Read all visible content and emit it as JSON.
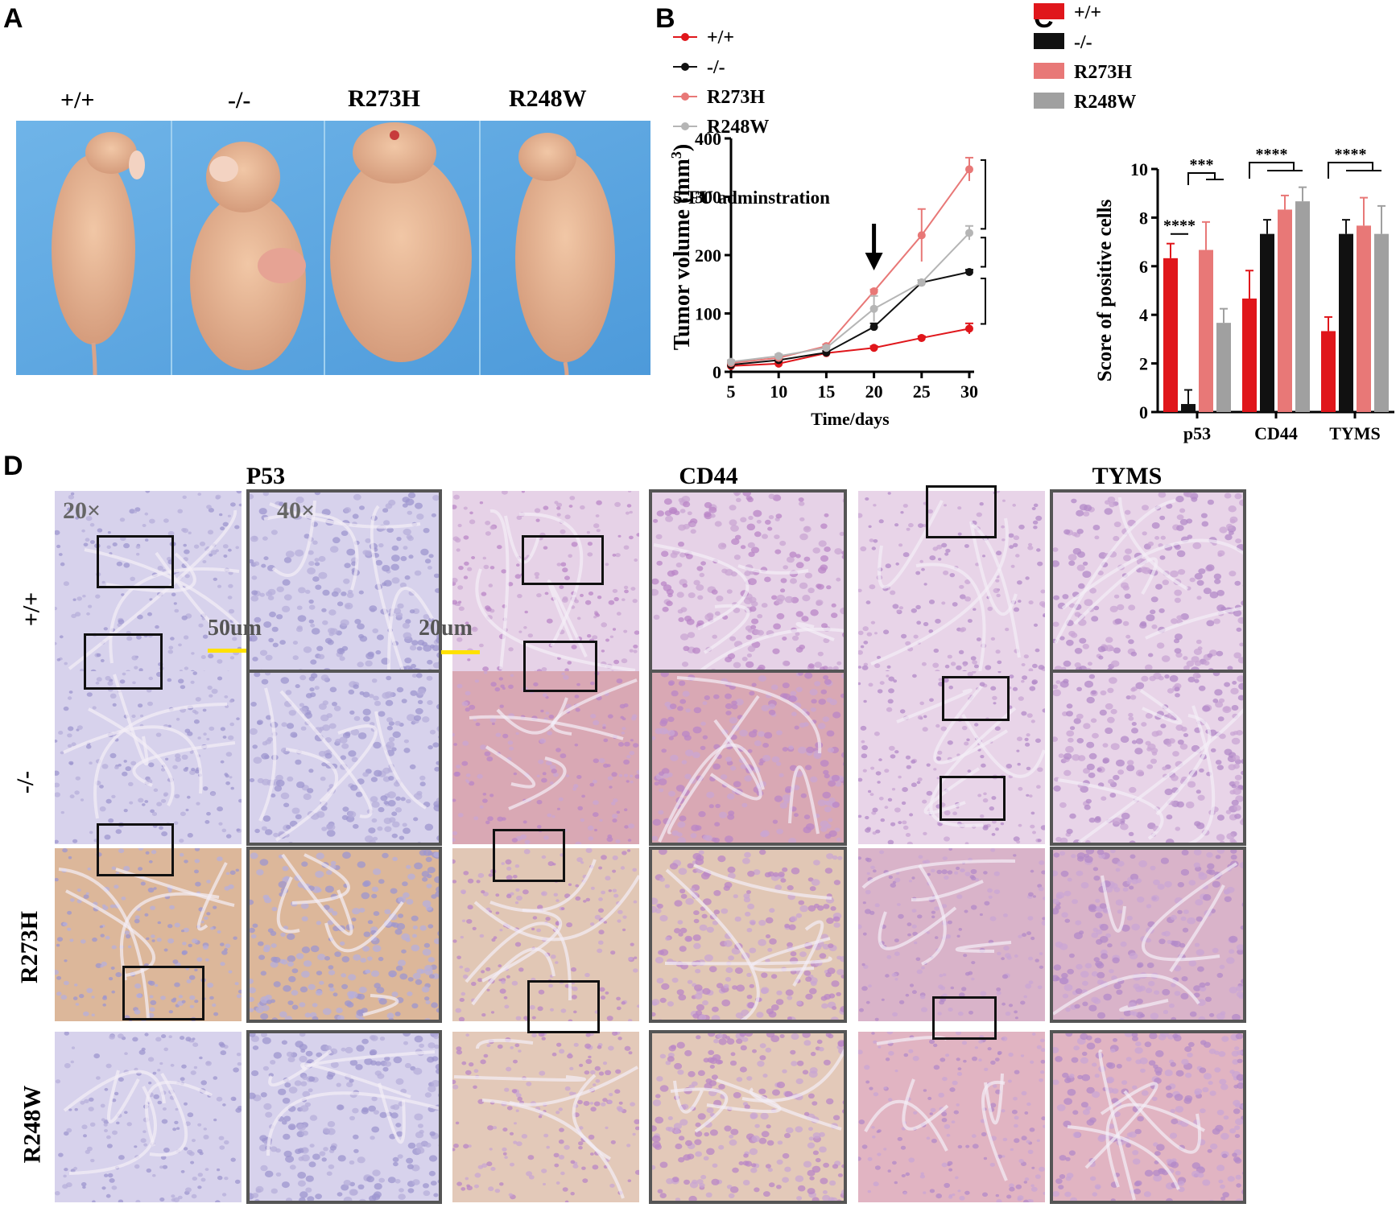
{
  "panels": {
    "A": "A",
    "B": "B",
    "C": "C",
    "D": "D"
  },
  "panel_a": {
    "labels": [
      "+/+",
      "-/-",
      "R273H",
      "R248W"
    ]
  },
  "chart_data": [
    {
      "id": "B",
      "type": "line",
      "xlabel": "Time/days",
      "ylabel": "Tumor volume (mm3)",
      "x": [
        5,
        10,
        15,
        20,
        25,
        30
      ],
      "xlim": [
        5,
        30
      ],
      "ylim": [
        0,
        400
      ],
      "yticks": [
        0,
        100,
        200,
        300,
        400
      ],
      "legend_position": "top-left",
      "annotation": "5-FU  adminstration",
      "series": [
        {
          "name": "+/+",
          "color": "#e0161b",
          "values": [
            10,
            14,
            32,
            41,
            58,
            74
          ],
          "err": [
            3,
            3,
            3,
            3,
            3,
            9
          ]
        },
        {
          "name": "-/-",
          "color": "#111111",
          "values": [
            12,
            20,
            33,
            77,
            153,
            171
          ],
          "err": [
            3,
            3,
            3,
            6,
            4,
            4
          ]
        },
        {
          "name": "R273H",
          "color": "#e87877",
          "values": [
            15,
            24,
            44,
            138,
            234,
            347
          ],
          "err": [
            3,
            3,
            3,
            3,
            45,
            20
          ]
        },
        {
          "name": "R248W",
          "color": "#b5b5b5",
          "values": [
            17,
            27,
            41,
            108,
            153,
            238
          ],
          "err": [
            3,
            3,
            3,
            22,
            4,
            12
          ]
        }
      ],
      "significance": [
        "**",
        "*",
        "**",
        "***"
      ]
    },
    {
      "id": "C",
      "type": "bar",
      "ylabel": "Score of positive cells",
      "categories": [
        "p53",
        "CD44",
        "TYMS"
      ],
      "ylim": [
        0,
        10
      ],
      "yticks": [
        "0",
        "2",
        "4",
        "6",
        "8",
        "10"
      ],
      "legend_position": "top",
      "series": [
        {
          "name": "+/+",
          "color": "#e0161b",
          "values": [
            6.33,
            4.67,
            3.33
          ],
          "err": [
            0.6,
            1.15,
            0.58
          ]
        },
        {
          "name": "-/-",
          "color": "#111111",
          "values": [
            0.33,
            7.33,
            7.33
          ],
          "err": [
            0.58,
            0.58,
            0.58
          ]
        },
        {
          "name": "R273H",
          "color": "#e87877",
          "values": [
            6.67,
            8.33,
            7.67
          ],
          "err": [
            1.15,
            0.58,
            1.15
          ]
        },
        {
          "name": "R248W",
          "color": "#a0a0a0",
          "values": [
            3.67,
            8.67,
            7.33
          ],
          "err": [
            0.58,
            0.58,
            1.15
          ]
        }
      ],
      "significance": [
        "****",
        "***",
        "****",
        "****"
      ]
    }
  ],
  "panel_d": {
    "columns": [
      "P53",
      "CD44",
      "TYMS"
    ],
    "rows": [
      "+/+",
      "-/-",
      "R273H",
      "R248W"
    ],
    "mag_low": "20×",
    "mag_high": "40×",
    "scale_low": "50um",
    "scale_high": "20um",
    "scale_bar_color": "#ffe100"
  }
}
